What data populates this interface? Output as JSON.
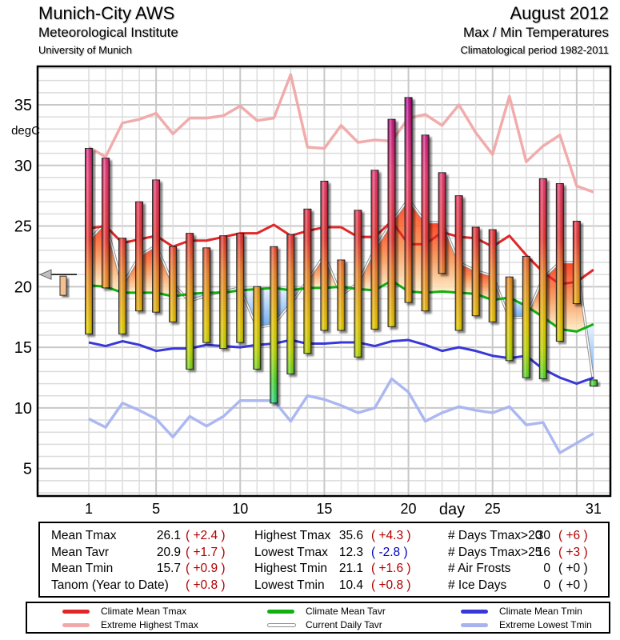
{
  "header": {
    "station": "Munich-City AWS",
    "institute": "Meteorological Institute",
    "university": "University of Munich",
    "period": "August 2012",
    "subtitle": "Max / Min Temperatures",
    "climatology": "Climatological period 1982-2011"
  },
  "chart_data": {
    "type": "bar",
    "title": "August 2012 Max / Min Temperatures",
    "xlabel": "day",
    "ylabel": "degC",
    "xlim": [
      -1.5,
      32
    ],
    "ylim": [
      2.8,
      38.1
    ],
    "x_ticks": [
      1,
      5,
      10,
      15,
      20,
      25,
      31
    ],
    "y_ticks": [
      5,
      10,
      15,
      20,
      25,
      30,
      35
    ],
    "grid": true,
    "days": [
      1,
      2,
      3,
      4,
      5,
      6,
      7,
      8,
      9,
      10,
      11,
      12,
      13,
      14,
      15,
      16,
      17,
      18,
      19,
      20,
      21,
      22,
      23,
      24,
      25,
      26,
      27,
      28,
      29,
      30,
      31
    ],
    "daily_tmax": [
      31.4,
      30.6,
      24.0,
      27.0,
      28.8,
      23.3,
      24.4,
      23.2,
      24.2,
      24.4,
      20.0,
      23.3,
      24.3,
      26.4,
      28.7,
      22.2,
      26.3,
      29.6,
      33.8,
      35.6,
      32.5,
      29.4,
      27.5,
      24.9,
      24.7,
      20.8,
      22.5,
      28.9,
      28.5,
      25.4,
      12.3
    ],
    "daily_tmin": [
      16.1,
      19.9,
      16.1,
      18.0,
      17.9,
      17.1,
      13.2,
      15.4,
      14.9,
      15.4,
      13.2,
      10.4,
      12.8,
      14.5,
      16.4,
      16.4,
      14.2,
      16.5,
      16.7,
      18.7,
      18.0,
      21.1,
      16.4,
      17.6,
      17.1,
      13.9,
      12.5,
      12.4,
      15.5,
      18.6,
      11.8
    ],
    "series": [
      {
        "name": "Climate Mean Tmax",
        "color": "#e02828",
        "values": [
          24.8,
          25.0,
          23.6,
          23.9,
          24.2,
          23.3,
          23.8,
          23.8,
          24.1,
          24.4,
          24.4,
          25.1,
          24.2,
          24.6,
          24.9,
          24.9,
          24.1,
          24.1,
          25.4,
          23.5,
          23.5,
          24.5,
          24.1,
          24.0,
          23.3,
          24.2,
          22.6,
          21.2,
          20.2,
          20.4,
          21.4
        ]
      },
      {
        "name": "Extreme Highest Tmax",
        "color": "#f0a8a8",
        "values": [
          31.5,
          30.7,
          33.5,
          33.8,
          34.3,
          32.6,
          33.9,
          33.9,
          34.1,
          34.9,
          33.7,
          33.9,
          37.5,
          31.5,
          31.4,
          33.3,
          31.9,
          32.1,
          32.0,
          33.9,
          34.2,
          33.3,
          35.0,
          32.7,
          30.9,
          35.7,
          30.3,
          31.6,
          32.5,
          28.3,
          27.8
        ]
      },
      {
        "name": "Climate Mean Tavr",
        "color": "#10b010",
        "values": [
          20.1,
          20.0,
          19.5,
          19.5,
          19.5,
          19.2,
          19.4,
          19.5,
          19.5,
          19.7,
          19.8,
          19.9,
          19.7,
          19.9,
          19.9,
          20.0,
          19.8,
          19.7,
          20.5,
          19.6,
          19.5,
          19.6,
          19.5,
          19.4,
          18.9,
          19.1,
          18.4,
          17.5,
          16.5,
          16.3,
          16.9
        ]
      },
      {
        "name": "Current Daily Tavr",
        "color": "#a0a0a0",
        "values": [
          23.8,
          25.3,
          20.1,
          22.5,
          23.4,
          20.2,
          18.8,
          19.3,
          19.6,
          19.9,
          16.6,
          16.9,
          18.6,
          20.5,
          22.6,
          19.3,
          20.3,
          23.1,
          25.3,
          27.2,
          25.3,
          25.3,
          22.0,
          21.3,
          20.9,
          17.4,
          17.5,
          20.7,
          22.0,
          22.0,
          12.1
        ]
      },
      {
        "name": "Climate Mean Tmin",
        "color": "#3838d8",
        "values": [
          15.4,
          15.1,
          15.5,
          15.2,
          14.7,
          14.9,
          14.9,
          15.2,
          15.1,
          15.0,
          15.2,
          15.3,
          15.6,
          15.3,
          15.3,
          15.4,
          15.4,
          15.1,
          15.5,
          15.6,
          15.2,
          14.7,
          15.0,
          14.7,
          14.3,
          14.1,
          14.3,
          13.2,
          12.5,
          12.0,
          12.5
        ]
      },
      {
        "name": "Extreme Lowest Tmin",
        "color": "#a8b4f0",
        "values": [
          9.1,
          8.4,
          10.4,
          9.8,
          9.1,
          7.6,
          9.3,
          8.5,
          9.3,
          10.6,
          10.6,
          10.6,
          8.9,
          11.0,
          10.7,
          10.2,
          9.6,
          10.0,
          12.4,
          11.3,
          8.9,
          9.6,
          10.1,
          9.8,
          9.6,
          10.1,
          8.6,
          8.8,
          6.3,
          7.1,
          7.9
        ]
      }
    ],
    "anomaly_indicator": {
      "label": "Tanom",
      "value": 0.8,
      "reference": 21.0
    }
  },
  "stats": {
    "col1": [
      {
        "label": "Mean Tmax",
        "value": "26.1",
        "anom": "( +2.4 )",
        "sign": "pos"
      },
      {
        "label": "Mean Tavr",
        "value": "20.9",
        "anom": "( +1.7 )",
        "sign": "pos"
      },
      {
        "label": "Mean Tmin",
        "value": "15.7",
        "anom": "( +0.9 )",
        "sign": "pos"
      },
      {
        "label": "Tanom (Year to Date)",
        "value": "",
        "anom": "( +0.8 )",
        "sign": "pos"
      }
    ],
    "col2": [
      {
        "label": "Highest Tmax",
        "value": "35.6",
        "anom": "( +4.3 )",
        "sign": "pos"
      },
      {
        "label": "Lowest Tmax",
        "value": "12.3",
        "anom": "( -2.8 )",
        "sign": "neg"
      },
      {
        "label": "Highest Tmin",
        "value": "21.1",
        "anom": "( +1.6 )",
        "sign": "pos"
      },
      {
        "label": "Lowest Tmin",
        "value": "10.4",
        "anom": "( +0.8 )",
        "sign": "pos"
      }
    ],
    "col3": [
      {
        "label": "# Days Tmax>20",
        "value": "30",
        "anom": "( +6 )",
        "sign": "pos"
      },
      {
        "label": "# Days Tmax>25",
        "value": "16",
        "anom": "( +3 )",
        "sign": "pos"
      },
      {
        "label": "# Air Frosts",
        "value": "0",
        "anom": "( +0 )",
        "sign": "zero"
      },
      {
        "label": "# Ice Days",
        "value": "0",
        "anom": "( +0 )",
        "sign": "zero"
      }
    ]
  },
  "legend": [
    {
      "label": "Climate Mean Tmax",
      "color": "#e02828"
    },
    {
      "label": "Extreme Highest Tmax",
      "color": "#f0a8a8"
    },
    {
      "label": "Climate Mean Tavr",
      "color": "#10b010"
    },
    {
      "label": "Current Daily Tavr",
      "color": "#c8c8c8"
    },
    {
      "label": "Climate Mean Tmin",
      "color": "#3838d8"
    },
    {
      "label": "Extreme Lowest Tmin",
      "color": "#a8b4f0"
    }
  ],
  "colors": {
    "positive_anom": "#b00000",
    "negative_anom": "#0000c0"
  }
}
